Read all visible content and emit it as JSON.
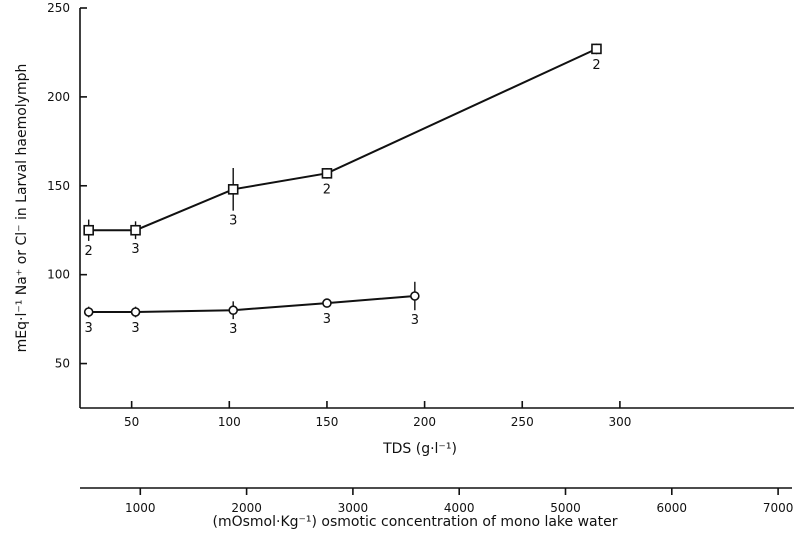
{
  "chart_data": {
    "type": "line",
    "xlabel": "TDS (g·l⁻¹)",
    "ylabel": "mEq·l⁻¹ Na⁺ or Cl⁻ in Larval haemolymph",
    "xlim": [
      0,
      300
    ],
    "ylim": [
      25,
      250
    ],
    "x_ticks": [
      "50",
      "100",
      "150",
      "200",
      "250",
      "300"
    ],
    "y_ticks": [
      "50",
      "100",
      "150",
      "200",
      "250"
    ],
    "grid": false,
    "legend": "none",
    "series": [
      {
        "marker": "square",
        "x": [
          28,
          52,
          102,
          150,
          288
        ],
        "y": [
          125,
          125,
          148,
          157,
          227
        ],
        "yerr": [
          6,
          5,
          12,
          3,
          3
        ],
        "n": [
          "2",
          "3",
          "3",
          "2",
          "2"
        ]
      },
      {
        "marker": "circle",
        "x": [
          28,
          52,
          102,
          150,
          195
        ],
        "y": [
          79,
          79,
          80,
          84,
          88
        ],
        "yerr": [
          3,
          3,
          5,
          2,
          8
        ],
        "n": [
          "3",
          "3",
          "3",
          "3",
          "3"
        ]
      }
    ],
    "secondary_axis": {
      "label": "(mOsmol·Kg⁻¹) osmotic concentration of mono lake water",
      "ticks": [
        "1000",
        "2000",
        "3000",
        "4000",
        "5000",
        "6000",
        "7000"
      ],
      "tick_values": [
        1000,
        2000,
        3000,
        4000,
        5000,
        6000,
        7000
      ],
      "range": [
        0,
        7300
      ]
    }
  }
}
